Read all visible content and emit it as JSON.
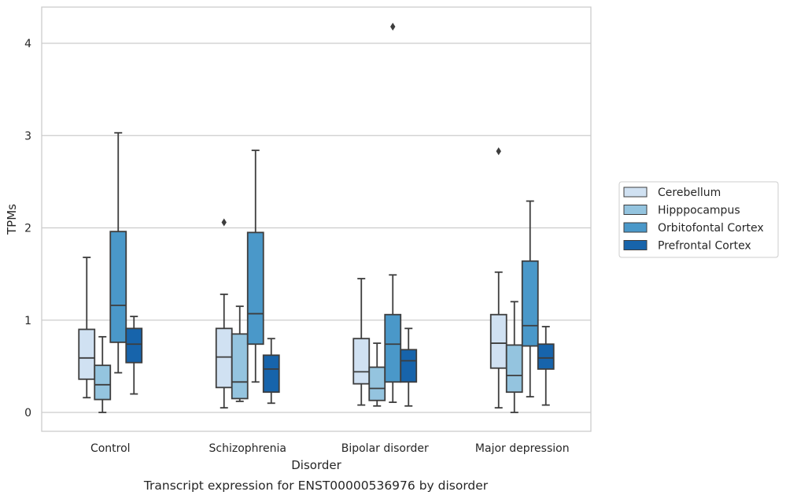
{
  "chart_data": {
    "type": "box",
    "caption": "Transcript expression for ENST00000536976 by disorder",
    "xlabel": "Disorder",
    "ylabel": "TPMs",
    "ylim": [
      -0.2,
      4.4
    ],
    "yticks": [
      0,
      1,
      2,
      3,
      4
    ],
    "grid": true,
    "legend_position": "right",
    "categories": [
      "Control",
      "Schizophrenia",
      "Bipolar disorder",
      "Major depression"
    ],
    "series": [
      {
        "name": "Cerebellum",
        "color": "#d0e1f2",
        "boxes": [
          {
            "whisker_low": 0.16,
            "q1": 0.36,
            "median": 0.59,
            "q3": 0.9,
            "whisker_high": 1.68,
            "outliers": []
          },
          {
            "whisker_low": 0.05,
            "q1": 0.27,
            "median": 0.6,
            "q3": 0.91,
            "whisker_high": 1.28,
            "outliers": [
              2.06
            ]
          },
          {
            "whisker_low": 0.08,
            "q1": 0.31,
            "median": 0.44,
            "q3": 0.8,
            "whisker_high": 1.45,
            "outliers": []
          },
          {
            "whisker_low": 0.05,
            "q1": 0.48,
            "median": 0.75,
            "q3": 1.06,
            "whisker_high": 1.52,
            "outliers": [
              2.83
            ]
          }
        ]
      },
      {
        "name": "Hipppocampus",
        "color": "#94c4df",
        "boxes": [
          {
            "whisker_low": 0.0,
            "q1": 0.14,
            "median": 0.3,
            "q3": 0.51,
            "whisker_high": 0.82,
            "outliers": []
          },
          {
            "whisker_low": 0.12,
            "q1": 0.15,
            "median": 0.33,
            "q3": 0.85,
            "whisker_high": 1.15,
            "outliers": []
          },
          {
            "whisker_low": 0.07,
            "q1": 0.13,
            "median": 0.26,
            "q3": 0.49,
            "whisker_high": 0.75,
            "outliers": []
          },
          {
            "whisker_low": 0.0,
            "q1": 0.22,
            "median": 0.4,
            "q3": 0.73,
            "whisker_high": 1.2,
            "outliers": []
          }
        ]
      },
      {
        "name": "Orbitofontal Cortex",
        "color": "#4a98c9",
        "boxes": [
          {
            "whisker_low": 0.43,
            "q1": 0.76,
            "median": 1.16,
            "q3": 1.96,
            "whisker_high": 3.03,
            "outliers": []
          },
          {
            "whisker_low": 0.33,
            "q1": 0.74,
            "median": 1.07,
            "q3": 1.95,
            "whisker_high": 2.84,
            "outliers": []
          },
          {
            "whisker_low": 0.11,
            "q1": 0.33,
            "median": 0.74,
            "q3": 1.06,
            "whisker_high": 1.49,
            "outliers": [
              4.18
            ]
          },
          {
            "whisker_low": 0.17,
            "q1": 0.72,
            "median": 0.94,
            "q3": 1.64,
            "whisker_high": 2.29,
            "outliers": []
          }
        ]
      },
      {
        "name": "Prefrontal Cortex",
        "color": "#1764ab",
        "boxes": [
          {
            "whisker_low": 0.2,
            "q1": 0.54,
            "median": 0.74,
            "q3": 0.91,
            "whisker_high": 1.04,
            "outliers": []
          },
          {
            "whisker_low": 0.1,
            "q1": 0.22,
            "median": 0.47,
            "q3": 0.62,
            "whisker_high": 0.8,
            "outliers": []
          },
          {
            "whisker_low": 0.07,
            "q1": 0.33,
            "median": 0.56,
            "q3": 0.68,
            "whisker_high": 0.91,
            "outliers": []
          },
          {
            "whisker_low": 0.08,
            "q1": 0.47,
            "median": 0.59,
            "q3": 0.74,
            "whisker_high": 0.93,
            "outliers": []
          }
        ]
      }
    ]
  }
}
